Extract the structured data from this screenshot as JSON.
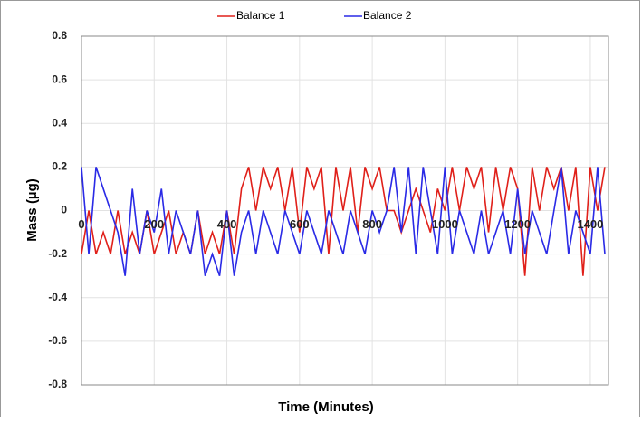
{
  "chart_data": {
    "type": "line",
    "xlabel": "Time (Minutes)",
    "ylabel": "Mass (µg)",
    "x": [
      0,
      20,
      40,
      60,
      80,
      100,
      120,
      140,
      160,
      180,
      200,
      220,
      240,
      260,
      280,
      300,
      320,
      340,
      360,
      380,
      400,
      420,
      440,
      460,
      480,
      500,
      520,
      540,
      560,
      580,
      600,
      620,
      640,
      660,
      680,
      700,
      720,
      740,
      760,
      780,
      800,
      820,
      840,
      860,
      880,
      900,
      920,
      940,
      960,
      980,
      1000,
      1020,
      1040,
      1060,
      1080,
      1100,
      1120,
      1140,
      1160,
      1180,
      1200,
      1220,
      1240,
      1260,
      1280,
      1300,
      1320,
      1340,
      1360,
      1380,
      1400,
      1420,
      1440
    ],
    "series": [
      {
        "name": "Balance 1",
        "color": "#e0201a",
        "values": [
          -0.2,
          0,
          -0.2,
          -0.1,
          -0.2,
          0,
          -0.2,
          -0.1,
          -0.2,
          0,
          -0.2,
          -0.1,
          0,
          -0.2,
          -0.1,
          -0.2,
          0,
          -0.2,
          -0.1,
          -0.2,
          0,
          -0.2,
          0.1,
          0.2,
          0,
          0.2,
          0.1,
          0.2,
          0,
          0.2,
          -0.1,
          0.2,
          0.1,
          0.2,
          -0.2,
          0.2,
          0,
          0.2,
          -0.1,
          0.2,
          0.1,
          0.2,
          0,
          0,
          -0.1,
          0,
          0.1,
          0,
          -0.1,
          0.1,
          0,
          0.2,
          0,
          0.2,
          0.1,
          0.2,
          -0.1,
          0.2,
          0,
          0.2,
          0.1,
          -0.3,
          0.2,
          0,
          0.2,
          0.1,
          0.2,
          0,
          0.2,
          -0.3,
          0.2,
          0,
          0.2
        ]
      },
      {
        "name": "Balance 2",
        "color": "#2a2ae6",
        "values": [
          0.2,
          -0.2,
          0.2,
          0.1,
          0,
          -0.1,
          -0.3,
          0.1,
          -0.2,
          0,
          -0.1,
          0.1,
          -0.2,
          0,
          -0.1,
          -0.2,
          0,
          -0.3,
          -0.2,
          -0.3,
          0,
          -0.3,
          -0.1,
          0,
          -0.2,
          0,
          -0.1,
          -0.2,
          0,
          -0.1,
          -0.2,
          0,
          -0.1,
          -0.2,
          0,
          -0.1,
          -0.2,
          0,
          -0.1,
          -0.2,
          0,
          -0.1,
          0,
          0.2,
          -0.1,
          0.2,
          -0.2,
          0.2,
          0,
          -0.2,
          0.2,
          -0.2,
          0,
          -0.1,
          -0.2,
          0,
          -0.2,
          -0.1,
          0,
          -0.2,
          0.1,
          -0.2,
          0,
          -0.1,
          -0.2,
          0,
          0.2,
          -0.2,
          0,
          -0.1,
          -0.2,
          0.2,
          -0.2
        ]
      }
    ],
    "xlim": [
      0,
      1450
    ],
    "xticks": [
      0,
      200,
      400,
      600,
      800,
      1000,
      1200,
      1400
    ],
    "ylim": [
      -0.8,
      0.8
    ],
    "yticks": [
      0.8,
      0.6,
      0.4,
      0.2,
      0,
      -0.2,
      -0.4,
      -0.6,
      -0.8
    ],
    "grid": true,
    "legend": "top"
  }
}
